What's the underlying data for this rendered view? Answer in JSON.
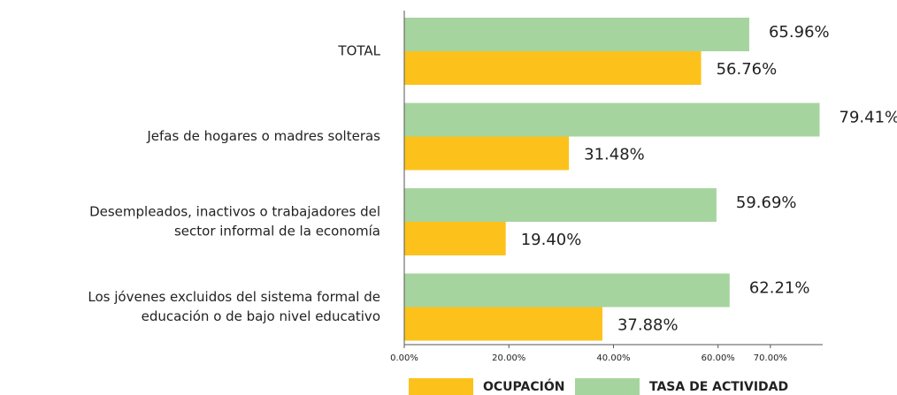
{
  "chart_data": {
    "type": "hbar",
    "categories": [
      [
        "TOTAL"
      ],
      [
        "Jefas de hogares o madres solteras"
      ],
      [
        "Desempleados, inactivos o trabajadores del",
        "sector informal de la economía"
      ],
      [
        "Los jóvenes excluidos del sistema formal de",
        "educación o de bajo nivel educativo"
      ]
    ],
    "series": [
      {
        "name": "TASA DE ACTIVIDAD",
        "color": "#a6d49e",
        "values": [
          65.96,
          79.41,
          59.69,
          62.21
        ],
        "value_labels": [
          "65.96%",
          "79.41%",
          "59.69%",
          "62.21%"
        ]
      },
      {
        "name": "OCUPACIÓN",
        "color": "#fcc21b",
        "values": [
          56.76,
          31.48,
          19.4,
          37.88
        ],
        "value_labels": [
          "56.76%",
          "31.48%",
          "19.40%",
          "37.88%"
        ]
      }
    ],
    "xlim": [
      0,
      80
    ],
    "xticks": [
      {
        "value": 0,
        "label": "0.00%"
      },
      {
        "value": 20,
        "label": "20.00%"
      },
      {
        "value": 40,
        "label": "40.00%"
      },
      {
        "value": 60,
        "label": "60.00%"
      },
      {
        "value": 70,
        "label": "70.00%"
      }
    ],
    "legend_order": [
      1,
      0
    ]
  }
}
